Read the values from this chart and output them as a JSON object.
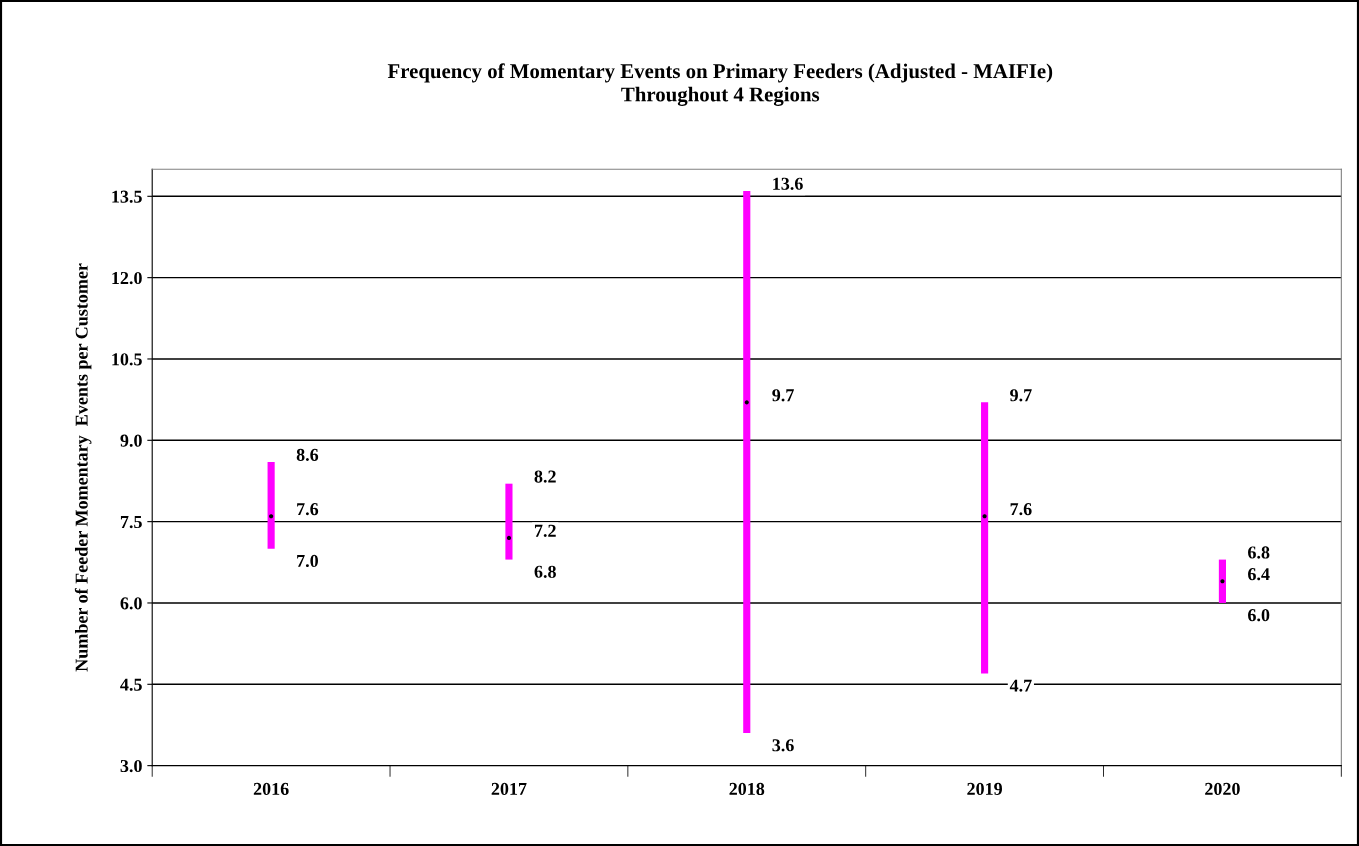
{
  "chart_data": {
    "type": "bar",
    "title": "Frequency of Momentary Events on Primary Feeders (Adjusted - MAIFIe)\nThroughout 4 Regions",
    "ylabel": "Number of Feeder Momentary  Events per Customer",
    "categories": [
      "2016",
      "2017",
      "2018",
      "2019",
      "2020"
    ],
    "series": [
      {
        "color": "#ff00ff",
        "base": [
          7.0,
          6.8,
          3.6,
          4.7,
          6.0
        ],
        "values": [
          1.6,
          1.4,
          10.0,
          5.0,
          0.8
        ]
      },
      {
        "type": "scatter",
        "color": "#000000",
        "marker": "circle",
        "values": [
          7.6,
          7.2,
          9.7,
          7.6,
          6.4
        ]
      }
    ],
    "annotations": [
      {
        "text": "8.6",
        "x": "2016",
        "y": 8.6
      },
      {
        "text": "7.6",
        "x": "2016",
        "y": 7.6
      },
      {
        "text": "7.0",
        "x": "2016",
        "y": 7.0
      },
      {
        "text": "8.2",
        "x": "2017",
        "y": 8.2
      },
      {
        "text": "7.2",
        "x": "2017",
        "y": 7.2
      },
      {
        "text": "6.8",
        "x": "2017",
        "y": 6.8
      },
      {
        "text": "13.6",
        "x": "2018",
        "y": 13.6
      },
      {
        "text": "9.7",
        "x": "2018",
        "y": 9.7
      },
      {
        "text": "3.6",
        "x": "2018",
        "y": 3.6
      },
      {
        "text": "9.7",
        "x": "2019",
        "y": 9.7
      },
      {
        "text": "7.6",
        "x": "2019",
        "y": 7.6
      },
      {
        "text": "4.7",
        "x": "2019",
        "y": 4.7
      },
      {
        "text": "6.8",
        "x": "2020",
        "y": 6.8
      },
      {
        "text": "6.4",
        "x": "2020",
        "y": 6.4
      },
      {
        "text": "6.0",
        "x": "2020",
        "y": 6.0
      }
    ],
    "ylim": [
      3.0,
      14.0
    ],
    "yticks": [
      {
        "value": 3.0,
        "label": "3.0"
      },
      {
        "value": 4.5,
        "label": "4.5"
      },
      {
        "value": 6.0,
        "label": "6.0"
      },
      {
        "value": 7.5,
        "label": "7.5"
      },
      {
        "value": 9.0,
        "label": "9.0"
      },
      {
        "value": 10.5,
        "label": "10.5"
      },
      {
        "value": 12.0,
        "label": "12.0"
      },
      {
        "value": 13.5,
        "label": "13.5"
      }
    ],
    "grid": "y",
    "legend": false
  }
}
